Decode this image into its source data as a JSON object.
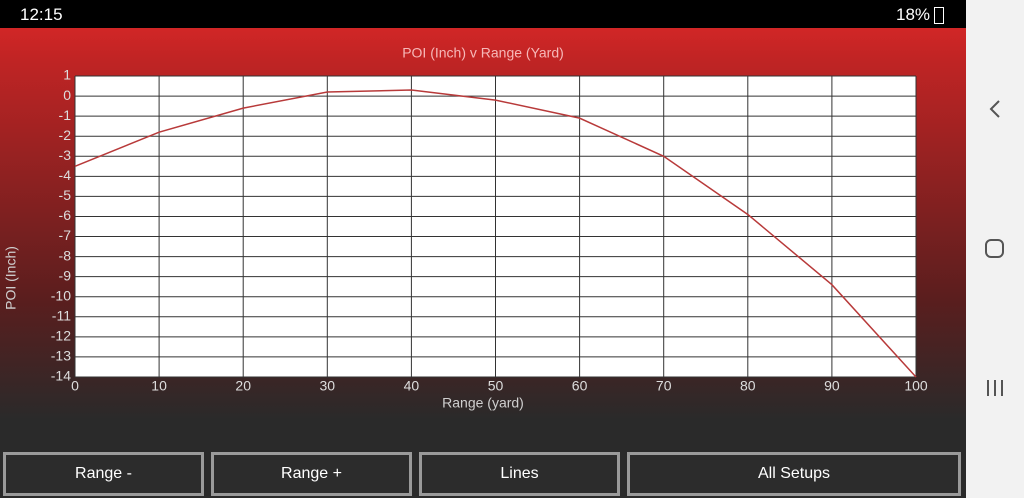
{
  "status_bar": {
    "time": "12:15",
    "battery": "18%"
  },
  "chart_data": {
    "type": "line",
    "title": "POI (Inch) v Range (Yard)",
    "x_label": "Range (yard)",
    "y_label": "POI (Inch)",
    "x": [
      0,
      10,
      20,
      30,
      40,
      50,
      60,
      70,
      80,
      90,
      100
    ],
    "values": [
      -3.5,
      -1.8,
      -0.6,
      0.2,
      0.3,
      -0.2,
      -1.1,
      -3.0,
      -5.9,
      -9.4,
      -14
    ],
    "color": "#b83a3a",
    "xlim": [
      0,
      100
    ],
    "xticks": [
      0,
      10,
      20,
      30,
      40,
      50,
      60,
      70,
      80,
      90,
      100
    ],
    "ylim": [
      -14,
      1
    ],
    "yticks": [
      -14,
      -13,
      -12,
      -11,
      -10,
      -9,
      -8,
      -7,
      -6,
      -5,
      -4,
      -3,
      -2,
      -1,
      0,
      1
    ],
    "grid": true
  },
  "buttons": [
    "Range -",
    "Range +",
    "Lines",
    "All Setups"
  ]
}
